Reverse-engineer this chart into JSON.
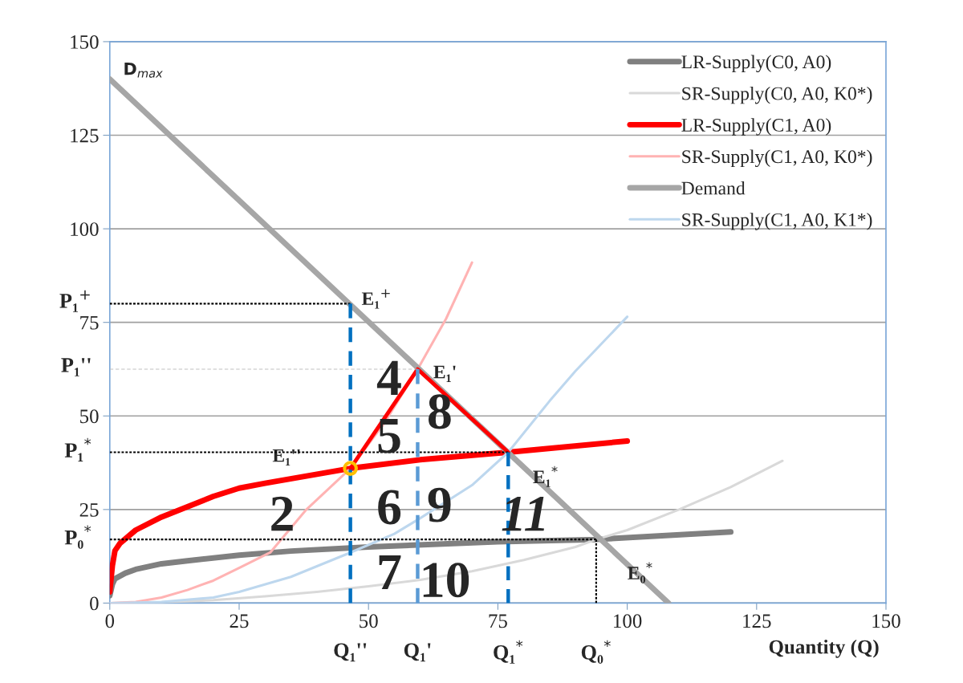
{
  "chart_data": {
    "type": "line",
    "xlabel": "Quantity (Q)",
    "xlim": [
      0,
      150
    ],
    "xticks": [
      0,
      25,
      50,
      75,
      100,
      125,
      150
    ],
    "ylim": [
      0,
      150
    ],
    "yticks": [
      0,
      25,
      50,
      75,
      100,
      125,
      150
    ],
    "grid": "y",
    "legend": "top right",
    "marker": "none",
    "series": [
      {
        "name": "LR-Supply(C0, A0)",
        "color": "#808080",
        "x": [
          0,
          0.5,
          1,
          3,
          5,
          10,
          15,
          25,
          35,
          50,
          75,
          94,
          120
        ],
        "values": [
          2,
          5,
          6.5,
          8,
          9,
          10.5,
          11.3,
          12.8,
          13.9,
          15,
          16.4,
          17,
          19
        ]
      },
      {
        "name": "SR-Supply(C0, A0, K0*)",
        "color": "#d9d9d9",
        "x": [
          0,
          10,
          20,
          30,
          40,
          50,
          60,
          70,
          80,
          90,
          94,
          100,
          110,
          120,
          130
        ],
        "values": [
          0,
          0.2,
          0.8,
          1.8,
          3,
          4.5,
          6.2,
          8.5,
          11.5,
          15,
          17,
          19.5,
          25,
          31,
          38
        ]
      },
      {
        "name": "LR-Supply(C1, A0)",
        "color": "#ff0000",
        "x": [
          0,
          0.5,
          1,
          2,
          5,
          10,
          20,
          25,
          30,
          46.5,
          60,
          77,
          100
        ],
        "values": [
          3,
          10,
          14,
          16,
          19.5,
          23,
          28.5,
          30.7,
          32,
          36,
          38.3,
          40.3,
          43.3
        ]
      },
      {
        "name": "SR-Supply(C1, A0, K0*)",
        "color": "#ffb3b3",
        "x": [
          0,
          5,
          10,
          15,
          20,
          25,
          31,
          38,
          46.5,
          53,
          59.5,
          65,
          70
        ],
        "values": [
          0,
          0.3,
          1.5,
          3.5,
          6,
          9.4,
          13.5,
          25,
          36,
          48,
          62.5,
          76,
          91
        ]
      },
      {
        "name": "Demand",
        "color": "#a6a6a6",
        "x": [
          0,
          108
        ],
        "values": [
          140,
          0
        ]
      },
      {
        "name": "SR-Supply(C1, A0, K1*)",
        "color": "#bdd7ee",
        "x": [
          0,
          10,
          20,
          25,
          35,
          46.5,
          55,
          60,
          70,
          77,
          85,
          90,
          100
        ],
        "values": [
          0,
          0.3,
          1.5,
          3,
          7,
          13.5,
          18.5,
          22.7,
          31.5,
          40.3,
          54,
          62,
          76.5
        ]
      },
      {
        "color": "#ff0000",
        "x": [
          46.5,
          59.5,
          77
        ],
        "values": [
          36,
          62.5,
          40.3
        ]
      },
      {
        "color": "#000000",
        "line_style": "dotted",
        "x": [
          0,
          46.5
        ],
        "values": [
          80,
          80
        ]
      },
      {
        "color": "#bfbfbf",
        "line_style": "dashed",
        "x": [
          0,
          59.5
        ],
        "values": [
          62.5,
          62.5
        ]
      },
      {
        "color": "#000000",
        "line_style": "dotted",
        "x": [
          0,
          77
        ],
        "values": [
          40.3,
          40.3
        ]
      },
      {
        "color": "#000000",
        "line_style": "dotted",
        "x": [
          0,
          94
        ],
        "values": [
          17,
          17
        ]
      },
      {
        "color": "#000000",
        "line_style": "dotted",
        "x": [
          94,
          94
        ],
        "values": [
          0,
          17
        ]
      },
      {
        "color": "#0070c0",
        "line_style": "dashed",
        "x": [
          46.5,
          46.5
        ],
        "values": [
          0,
          80
        ]
      },
      {
        "color": "#5b9bd5",
        "line_style": "dashed",
        "x": [
          59.5,
          59.5
        ],
        "values": [
          0,
          62.5
        ]
      },
      {
        "color": "#0070c0",
        "line_style": "dashed",
        "x": [
          77,
          77
        ],
        "values": [
          0,
          40.3
        ]
      },
      {
        "type": "scatter",
        "marker": "circle",
        "color": "#ffc000",
        "x": [
          46.5
        ],
        "values": [
          36
        ]
      }
    ],
    "annotations": [
      {
        "text": "D$_{max}$",
        "x": 0,
        "y": 140
      },
      {
        "text": "E₁$^{+}$",
        "x": 46.5,
        "y": 80
      },
      {
        "text": "E₁'",
        "x": 59.5,
        "y": 62.5
      },
      {
        "text": "E₁''",
        "x": 46.5,
        "y": 36
      },
      {
        "text": "E₁$^{*}$",
        "x": 77,
        "y": 40.3
      },
      {
        "text": "E₀$^{*}$",
        "x": 94,
        "y": 17
      },
      {
        "text": "P₁$^{+}$",
        "x": 0,
        "y": 80
      },
      {
        "text": "P₁''",
        "x": 0,
        "y": 62.5
      },
      {
        "text": "P₁$^{*}$",
        "x": 0,
        "y": 40.3
      },
      {
        "text": "P₀$^{*}$",
        "x": 0,
        "y": 17
      },
      {
        "text": "Q₁''",
        "x": 46.5,
        "y": 0
      },
      {
        "text": "Q₁'",
        "x": 59.5,
        "y": 0
      },
      {
        "text": "Q₁$^{*}$",
        "x": 77,
        "y": 0
      },
      {
        "text": "Q₀$^{*}$",
        "x": 94,
        "y": 0
      },
      "2",
      "4",
      "5",
      "8",
      "6",
      "9",
      "11",
      "7",
      "10"
    ]
  }
}
